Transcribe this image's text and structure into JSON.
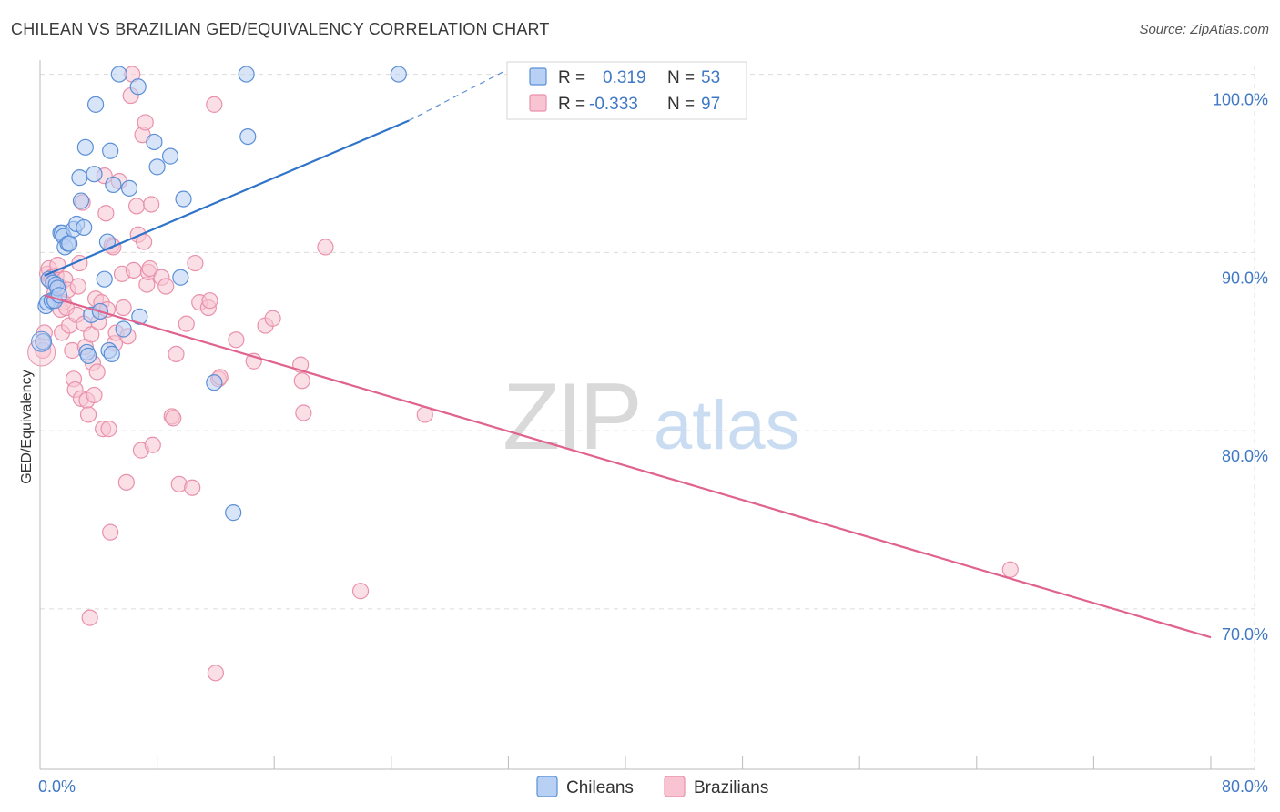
{
  "title": "CHILEAN VS BRAZILIAN GED/EQUIVALENCY CORRELATION CHART",
  "source": "Source: ZipAtlas.com",
  "watermark": {
    "zip": "ZIP",
    "atlas": "atlas"
  },
  "colors": {
    "chileans_fill": "#b8d0f4",
    "chileans_stroke": "#5b8fd6",
    "chileans_line": "#2f74c9",
    "brazilians_fill": "#f8c4d2",
    "brazilians_stroke": "#e991ab",
    "brazilians_line": "#e0628e",
    "tick_label": "#3f78c4",
    "grid": "#dcdcdc"
  },
  "legend_stats": [
    {
      "series": "Chileans",
      "r_label": "R =",
      "r_value": "0.319",
      "n_label": "N =",
      "n_value": "53"
    },
    {
      "series": "Brazilians",
      "r_label": "R =",
      "r_value": "-0.333",
      "n_label": "N =",
      "n_value": "97"
    }
  ],
  "chart_data": {
    "type": "scatter",
    "title": "CHILEAN VS BRAZILIAN GED/EQUIVALENCY CORRELATION CHART",
    "xlabel": "",
    "ylabel": "GED/Equivalency",
    "xlim": [
      0,
      80
    ],
    "ylim": [
      61,
      101
    ],
    "x_tick_labels": [
      "0.0%",
      "80.0%"
    ],
    "y_ticks": [
      70,
      80,
      90,
      100
    ],
    "y_tick_labels": [
      "70.0%",
      "80.0%",
      "90.0%",
      "100.0%"
    ],
    "grid": true,
    "legend_position": "bottom",
    "series": [
      {
        "name": "Chileans",
        "trend": {
          "x0": 0.3,
          "y0": 88.7,
          "x1": 25.2,
          "y1": 97.4,
          "dashed_to_x": 32.5,
          "dashed_to_y": 100.5
        },
        "points": [
          [
            0.2,
            85
          ],
          [
            0.4,
            87
          ],
          [
            0.5,
            87.2
          ],
          [
            0.6,
            88.5
          ],
          [
            0.8,
            87.3
          ],
          [
            0.9,
            88.3
          ],
          [
            1.0,
            87.3
          ],
          [
            1.1,
            88.2
          ],
          [
            1.2,
            88.0
          ],
          [
            1.3,
            87.6
          ],
          [
            1.4,
            91.1
          ],
          [
            1.5,
            91.1
          ],
          [
            1.6,
            90.9
          ],
          [
            1.7,
            90.3
          ],
          [
            1.9,
            90.5
          ],
          [
            2.0,
            90.5
          ],
          [
            2.3,
            91.3
          ],
          [
            2.5,
            91.6
          ],
          [
            2.7,
            94.2
          ],
          [
            2.8,
            92.9
          ],
          [
            3.0,
            91.4
          ],
          [
            3.1,
            95.9
          ],
          [
            3.2,
            84.4
          ],
          [
            3.3,
            84.2
          ],
          [
            3.5,
            86.5
          ],
          [
            3.7,
            94.4
          ],
          [
            3.8,
            98.3
          ],
          [
            4.1,
            86.7
          ],
          [
            4.4,
            88.5
          ],
          [
            4.6,
            90.6
          ],
          [
            4.7,
            84.5
          ],
          [
            4.8,
            95.7
          ],
          [
            4.9,
            84.3
          ],
          [
            5.0,
            93.8
          ],
          [
            5.4,
            100
          ],
          [
            5.7,
            85.7
          ],
          [
            6.1,
            93.6
          ],
          [
            6.7,
            99.3
          ],
          [
            6.8,
            86.4
          ],
          [
            7.8,
            96.2
          ],
          [
            8.0,
            94.8
          ],
          [
            8.9,
            95.4
          ],
          [
            9.6,
            88.6
          ],
          [
            9.8,
            93
          ],
          [
            11.9,
            82.7
          ],
          [
            13.2,
            75.4
          ],
          [
            14.1,
            100
          ],
          [
            14.2,
            96.5
          ],
          [
            24.5,
            100
          ]
        ]
      },
      {
        "name": "Brazilians",
        "trend": {
          "x0": 0.3,
          "y0": 87.6,
          "x1": 80,
          "y1": 68.4
        },
        "points": [
          [
            0.2,
            84.5
          ],
          [
            0.3,
            85.5
          ],
          [
            0.5,
            88.8
          ],
          [
            0.6,
            89.1
          ],
          [
            0.7,
            88.4
          ],
          [
            0.8,
            88.6
          ],
          [
            0.9,
            88.4
          ],
          [
            1.0,
            87.7
          ],
          [
            1.1,
            88.7
          ],
          [
            1.2,
            89.3
          ],
          [
            1.3,
            88.1
          ],
          [
            1.4,
            86.8
          ],
          [
            1.5,
            85.5
          ],
          [
            1.6,
            87.2
          ],
          [
            1.7,
            88.5
          ],
          [
            1.8,
            86.9
          ],
          [
            1.9,
            87.9
          ],
          [
            2.0,
            85.9
          ],
          [
            2.2,
            84.5
          ],
          [
            2.3,
            82.9
          ],
          [
            2.4,
            82.3
          ],
          [
            2.5,
            86.5
          ],
          [
            2.6,
            88.1
          ],
          [
            2.7,
            89.4
          ],
          [
            2.8,
            81.8
          ],
          [
            2.9,
            92.8
          ],
          [
            3.0,
            86.0
          ],
          [
            3.1,
            84.7
          ],
          [
            3.2,
            81.7
          ],
          [
            3.3,
            80.9
          ],
          [
            3.4,
            69.5
          ],
          [
            3.5,
            85.4
          ],
          [
            3.6,
            83.8
          ],
          [
            3.7,
            82.0
          ],
          [
            3.8,
            87.4
          ],
          [
            3.9,
            83.3
          ],
          [
            4.0,
            86.1
          ],
          [
            4.1,
            86.7
          ],
          [
            4.2,
            87.2
          ],
          [
            4.3,
            80.1
          ],
          [
            4.4,
            94.3
          ],
          [
            4.5,
            92.2
          ],
          [
            4.6,
            86.8
          ],
          [
            4.7,
            80.1
          ],
          [
            4.8,
            74.3
          ],
          [
            4.9,
            90.4
          ],
          [
            5.0,
            90.3
          ],
          [
            5.1,
            84.9
          ],
          [
            5.2,
            85.5
          ],
          [
            5.4,
            94.0
          ],
          [
            5.6,
            88.8
          ],
          [
            5.7,
            86.9
          ],
          [
            5.9,
            77.1
          ],
          [
            6.0,
            85.3
          ],
          [
            6.2,
            98.8
          ],
          [
            6.3,
            100
          ],
          [
            6.4,
            89.0
          ],
          [
            6.6,
            92.6
          ],
          [
            6.7,
            91.0
          ],
          [
            6.9,
            78.9
          ],
          [
            7.0,
            96.6
          ],
          [
            7.1,
            90.6
          ],
          [
            7.2,
            97.3
          ],
          [
            7.3,
            88.2
          ],
          [
            7.4,
            88.9
          ],
          [
            7.5,
            89.1
          ],
          [
            7.6,
            92.7
          ],
          [
            7.7,
            79.2
          ],
          [
            8.3,
            88.6
          ],
          [
            8.6,
            88.1
          ],
          [
            9.0,
            80.8
          ],
          [
            9.1,
            80.7
          ],
          [
            9.3,
            84.3
          ],
          [
            9.5,
            77.0
          ],
          [
            10.0,
            86.0
          ],
          [
            10.4,
            76.8
          ],
          [
            10.6,
            89.4
          ],
          [
            10.9,
            87.2
          ],
          [
            11.5,
            86.9
          ],
          [
            11.6,
            87.3
          ],
          [
            11.9,
            98.3
          ],
          [
            12.0,
            66.4
          ],
          [
            12.2,
            82.9
          ],
          [
            12.3,
            83.0
          ],
          [
            13.4,
            85.1
          ],
          [
            14.6,
            83.9
          ],
          [
            15.4,
            85.9
          ],
          [
            15.9,
            86.3
          ],
          [
            17.8,
            83.7
          ],
          [
            18.0,
            81.0
          ],
          [
            17.9,
            82.8
          ],
          [
            19.5,
            90.3
          ],
          [
            21.9,
            71.0
          ],
          [
            26.3,
            80.9
          ],
          [
            66.3,
            72.2
          ]
        ]
      }
    ]
  }
}
